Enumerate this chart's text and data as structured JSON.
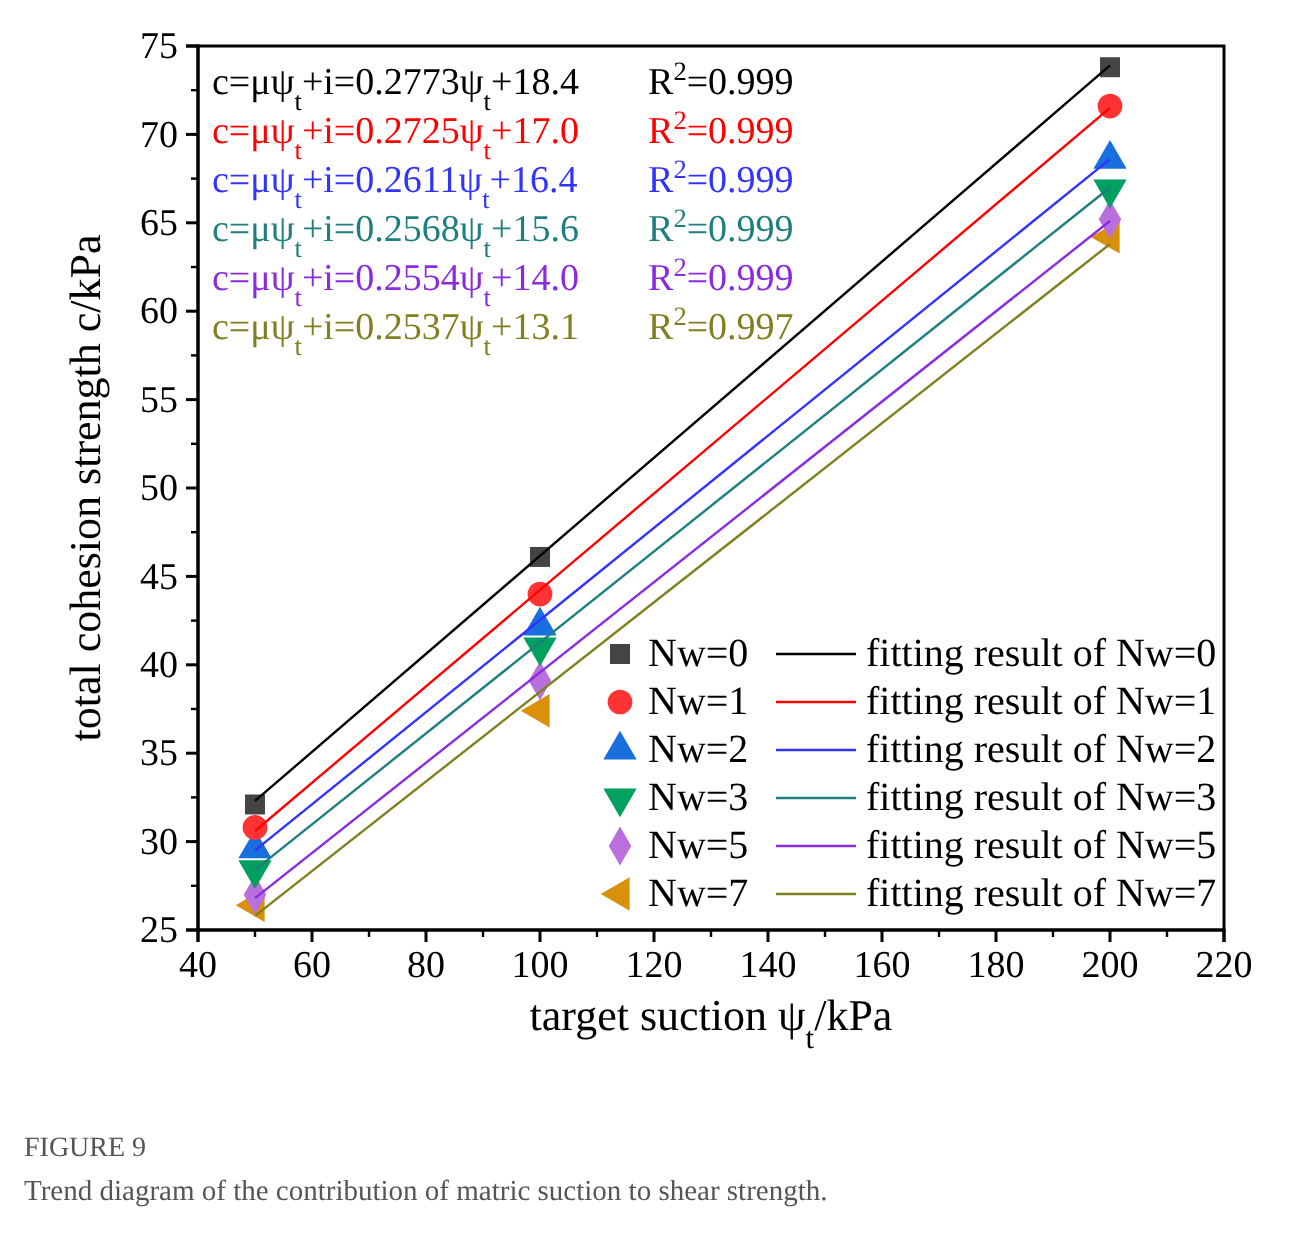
{
  "chart_data": {
    "type": "scatter",
    "title": "FIGURE 9",
    "subtitle": "Trend diagram of the contribution of matric suction to shear strength.",
    "xlabel": "target suction ψ$_{t}$/kPa",
    "ylabel": "total cohesion strength c/kPa",
    "xlim": [
      40,
      220
    ],
    "xticks": [
      40,
      60,
      80,
      100,
      120,
      140,
      160,
      180,
      200,
      220
    ],
    "ylim": [
      25,
      75
    ],
    "yticks": [
      25,
      30,
      35,
      40,
      45,
      50,
      55,
      60,
      65,
      70,
      75
    ],
    "grid": false,
    "legend": "bottom right",
    "series": [
      {
        "name": "Nw=0",
        "marker": "square",
        "color": "#444444",
        "x": [
          50,
          100,
          200
        ],
        "values": [
          32.1,
          46.1,
          73.8
        ]
      },
      {
        "name": "Nw=1",
        "marker": "circle",
        "color": "#ff3333",
        "x": [
          50,
          100,
          200
        ],
        "values": [
          30.8,
          44.0,
          71.6
        ]
      },
      {
        "name": "Nw=2",
        "marker": "triangle",
        "color": "#1a6fdf",
        "x": [
          50,
          100,
          200
        ],
        "values": [
          29.6,
          42.2,
          68.6
        ]
      },
      {
        "name": "Nw=3",
        "marker": "triangle-down",
        "color": "#00a060",
        "x": [
          50,
          100,
          200
        ],
        "values": [
          28.4,
          41.0,
          66.9
        ]
      },
      {
        "name": "Nw=5",
        "marker": "diamond",
        "color": "#b96fdc",
        "x": [
          50,
          100,
          200
        ],
        "values": [
          27.0,
          39.1,
          65.2
        ]
      },
      {
        "name": "Nw=7",
        "marker": "triangle-left",
        "color": "#d9900a",
        "x": [
          50,
          100,
          200
        ],
        "values": [
          26.4,
          37.4,
          64.2
        ]
      },
      {
        "name": "fitting result of Nw=0",
        "type": "line",
        "line_style": "solid",
        "color": "#000000",
        "x": [
          50,
          200
        ],
        "values": [
          32.3,
          73.9
        ]
      },
      {
        "name": "fitting result of Nw=1",
        "type": "line",
        "line_style": "solid",
        "color": "#ff0000",
        "x": [
          50,
          200
        ],
        "values": [
          30.6,
          71.5
        ]
      },
      {
        "name": "fitting result of Nw=2",
        "type": "line",
        "line_style": "solid",
        "color": "#3333ff",
        "x": [
          50,
          200
        ],
        "values": [
          29.5,
          68.6
        ]
      },
      {
        "name": "fitting result of Nw=3",
        "type": "line",
        "line_style": "solid",
        "color": "#1f7f7f",
        "x": [
          50,
          200
        ],
        "values": [
          28.4,
          67.0
        ]
      },
      {
        "name": "fitting result of Nw=5",
        "type": "line",
        "line_style": "solid",
        "color": "#8a2be2",
        "x": [
          50,
          200
        ],
        "values": [
          26.8,
          65.1
        ]
      },
      {
        "name": "fitting result of Nw=7",
        "type": "line",
        "line_style": "solid",
        "color": "#808020",
        "x": [
          50,
          200
        ],
        "values": [
          25.8,
          63.8
        ]
      }
    ],
    "annotations": [
      "c=μψ$_{t}$+i=0.2773ψ$_{t}$+18.4",
      "R$^{2}$=0.999",
      "c=μψ$_{t}$+i=0.2725ψ$_{t}$+17.0",
      "R$^{2}$=0.999",
      "c=μψ$_{t}$+i=0.2611ψ$_{t}$+16.4",
      "R$^{2}$=0.999",
      "c=μψ$_{t}$+i=0.2568ψ$_{t}$+15.6",
      "R$^{2}$=0.999",
      "c=μψ$_{t}$+i=0.2554ψ$_{t}$+14.0",
      "R$^{2}$=0.999",
      "c=μψ$_{t}$+i=0.2537ψ$_{t}$+13.1",
      "R$^{2}$=0.997"
    ]
  }
}
